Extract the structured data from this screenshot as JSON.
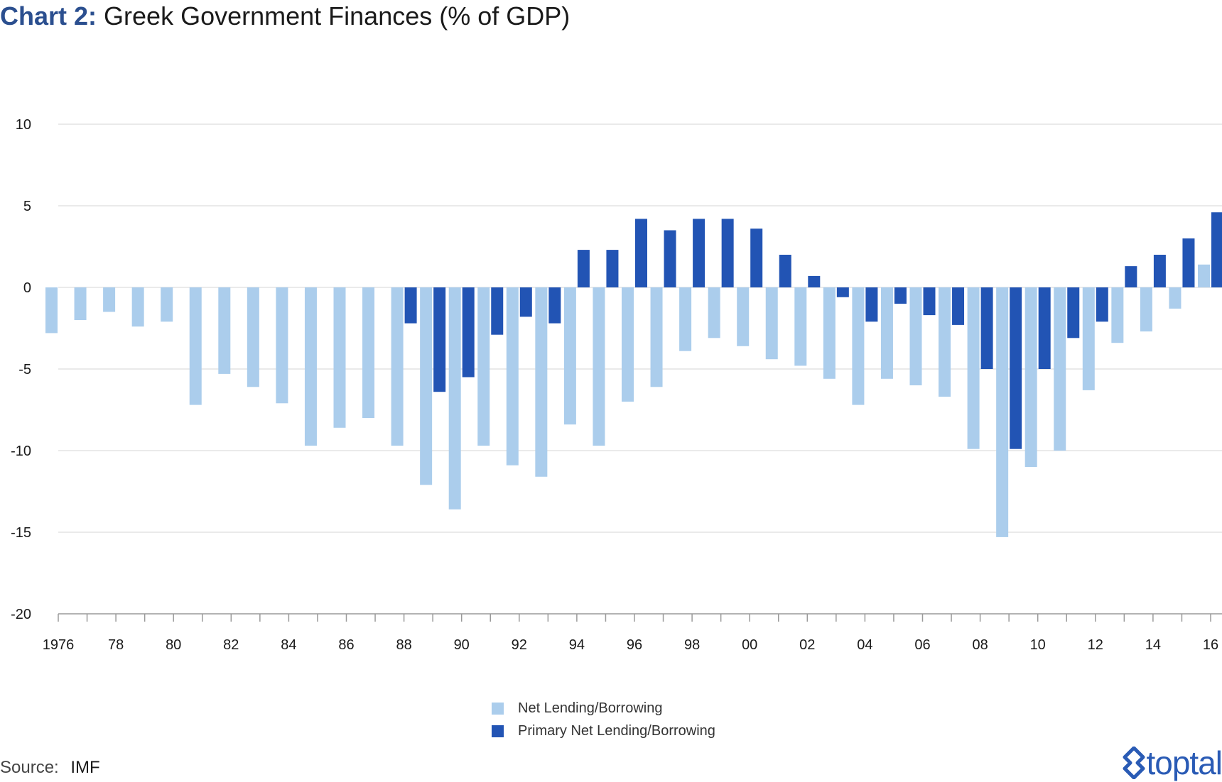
{
  "title": {
    "prefix": "Chart 2:",
    "text": "Greek Government Finances (% of GDP)"
  },
  "source": {
    "label": "Source:",
    "value": "IMF"
  },
  "brand": {
    "name": "toptal",
    "color": "#2a5bb5"
  },
  "colors": {
    "light": "#abcdec",
    "dark": "#2254b4",
    "grid": "#e3e3e3",
    "title_accent": "#2b4f8f"
  },
  "chart_data": {
    "type": "bar",
    "title": "Greek Government Finances (% of GDP)",
    "ylim": [
      -20,
      10
    ],
    "yticks": [
      "10",
      "5",
      "0",
      "-5",
      "-10",
      "-15",
      "-20"
    ],
    "grid": true,
    "legend_position": "bottom",
    "categories": [
      "1976",
      "1977",
      "1978",
      "1979",
      "1980",
      "1981",
      "1982",
      "1983",
      "1984",
      "1985",
      "1986",
      "1987",
      "1988",
      "1989",
      "1990",
      "1991",
      "1992",
      "1993",
      "1994",
      "1995",
      "1996",
      "1997",
      "1998",
      "1999",
      "2000",
      "2001",
      "2002",
      "2003",
      "2004",
      "2005",
      "2006",
      "2007",
      "2008",
      "2009",
      "2010",
      "2011",
      "2012",
      "2013",
      "2014",
      "2015",
      "2016"
    ],
    "xtick_labels": [
      "1976",
      "",
      "78",
      "",
      "80",
      "",
      "82",
      "",
      "84",
      "",
      "86",
      "",
      "88",
      "",
      "90",
      "",
      "92",
      "",
      "94",
      "",
      "96",
      "",
      "98",
      "",
      "00",
      "",
      "02",
      "",
      "04",
      "",
      "06",
      "",
      "08",
      "",
      "10",
      "",
      "12",
      "",
      "14",
      "",
      "16"
    ],
    "series": [
      {
        "name": "Net Lending/Borrowing",
        "color": "#abcdec",
        "values": [
          -2.8,
          -2.0,
          -1.5,
          -2.4,
          -2.1,
          -7.2,
          -5.3,
          -6.1,
          -7.1,
          -9.7,
          -8.6,
          -8.0,
          -9.7,
          -12.1,
          -13.6,
          -9.7,
          -10.9,
          -11.6,
          -8.4,
          -9.7,
          -7.0,
          -6.1,
          -3.9,
          -3.1,
          -3.6,
          -4.4,
          -4.8,
          -5.6,
          -7.2,
          -5.6,
          -6.0,
          -6.7,
          -9.9,
          -15.3,
          -11.0,
          -10.0,
          -6.3,
          -3.4,
          -2.7,
          -1.3,
          1.4
        ]
      },
      {
        "name": "Primary Net Lending/Borrowing",
        "color": "#2254b4",
        "values": [
          null,
          null,
          null,
          null,
          null,
          null,
          null,
          null,
          null,
          null,
          null,
          null,
          -2.2,
          -6.4,
          -5.5,
          -2.9,
          -1.8,
          -2.2,
          2.3,
          2.3,
          4.2,
          3.5,
          4.2,
          4.2,
          3.6,
          2.0,
          0.7,
          -0.6,
          -2.1,
          -1.0,
          -1.7,
          -2.3,
          -5.0,
          -9.9,
          -5.0,
          -3.1,
          -2.1,
          1.3,
          2.0,
          3.0,
          4.6
        ]
      }
    ]
  }
}
